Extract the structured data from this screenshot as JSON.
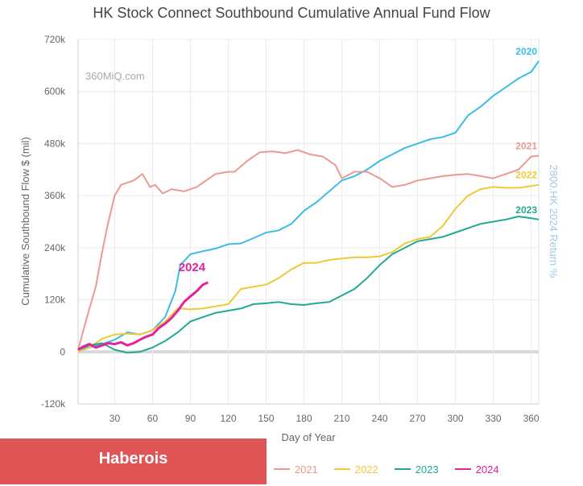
{
  "chart_data": {
    "type": "line",
    "title": "HK Stock Connect Southbound Cumulative Annual Fund Flow",
    "watermark": "360MiQ.com",
    "xlabel": "Day of Year",
    "ylabel": "Cumulative Southbound Flow $ (mil)",
    "y2label": "2800.HK 2024 Return %",
    "xlim": [
      1,
      366
    ],
    "ylim": [
      -120000,
      720000
    ],
    "x_ticks": [
      30,
      60,
      90,
      120,
      150,
      180,
      210,
      240,
      270,
      300,
      330,
      360
    ],
    "y_ticks": [
      {
        "value": 720000,
        "label": "720k"
      },
      {
        "value": 600000,
        "label": "600k"
      },
      {
        "value": 480000,
        "label": "480k"
      },
      {
        "value": 360000,
        "label": "360k"
      },
      {
        "value": 240000,
        "label": "240k"
      },
      {
        "value": 120000,
        "label": "120k"
      },
      {
        "value": 0,
        "label": "0"
      },
      {
        "value": -120000,
        "label": "-120k"
      }
    ],
    "grid": true,
    "legend_position": "bottom",
    "series": [
      {
        "name": "2020",
        "label": "2020",
        "color": "#3bbde6",
        "points": [
          [
            1,
            5000
          ],
          [
            10,
            10000
          ],
          [
            20,
            18000
          ],
          [
            30,
            28000
          ],
          [
            40,
            45000
          ],
          [
            50,
            40000
          ],
          [
            60,
            50000
          ],
          [
            70,
            80000
          ],
          [
            78,
            140000
          ],
          [
            82,
            200000
          ],
          [
            90,
            225000
          ],
          [
            100,
            232000
          ],
          [
            110,
            238000
          ],
          [
            120,
            248000
          ],
          [
            130,
            250000
          ],
          [
            140,
            262000
          ],
          [
            150,
            275000
          ],
          [
            160,
            280000
          ],
          [
            170,
            295000
          ],
          [
            180,
            325000
          ],
          [
            190,
            345000
          ],
          [
            200,
            370000
          ],
          [
            210,
            395000
          ],
          [
            220,
            405000
          ],
          [
            230,
            420000
          ],
          [
            240,
            440000
          ],
          [
            250,
            455000
          ],
          [
            260,
            470000
          ],
          [
            270,
            480000
          ],
          [
            280,
            490000
          ],
          [
            290,
            495000
          ],
          [
            300,
            505000
          ],
          [
            310,
            545000
          ],
          [
            320,
            565000
          ],
          [
            330,
            590000
          ],
          [
            340,
            610000
          ],
          [
            350,
            630000
          ],
          [
            360,
            645000
          ],
          [
            366,
            670000
          ]
        ]
      },
      {
        "name": "2021",
        "label": "2021",
        "color": "#ec9a90",
        "points": [
          [
            1,
            5000
          ],
          [
            8,
            80000
          ],
          [
            15,
            150000
          ],
          [
            20,
            230000
          ],
          [
            25,
            300000
          ],
          [
            30,
            360000
          ],
          [
            35,
            385000
          ],
          [
            45,
            395000
          ],
          [
            52,
            410000
          ],
          [
            58,
            380000
          ],
          [
            62,
            385000
          ],
          [
            68,
            365000
          ],
          [
            75,
            375000
          ],
          [
            85,
            370000
          ],
          [
            95,
            380000
          ],
          [
            100,
            390000
          ],
          [
            110,
            410000
          ],
          [
            120,
            415000
          ],
          [
            125,
            415000
          ],
          [
            135,
            440000
          ],
          [
            145,
            460000
          ],
          [
            155,
            462000
          ],
          [
            165,
            458000
          ],
          [
            175,
            465000
          ],
          [
            185,
            455000
          ],
          [
            195,
            450000
          ],
          [
            205,
            430000
          ],
          [
            210,
            400000
          ],
          [
            220,
            415000
          ],
          [
            230,
            415000
          ],
          [
            240,
            400000
          ],
          [
            250,
            380000
          ],
          [
            260,
            385000
          ],
          [
            270,
            395000
          ],
          [
            280,
            400000
          ],
          [
            290,
            405000
          ],
          [
            300,
            408000
          ],
          [
            310,
            410000
          ],
          [
            320,
            405000
          ],
          [
            330,
            400000
          ],
          [
            340,
            410000
          ],
          [
            350,
            420000
          ],
          [
            360,
            450000
          ],
          [
            366,
            452000
          ]
        ]
      },
      {
        "name": "2022",
        "label": "2022",
        "color": "#f0c936",
        "points": [
          [
            1,
            0
          ],
          [
            10,
            10000
          ],
          [
            20,
            30000
          ],
          [
            30,
            40000
          ],
          [
            40,
            42000
          ],
          [
            50,
            40000
          ],
          [
            60,
            50000
          ],
          [
            70,
            70000
          ],
          [
            80,
            100000
          ],
          [
            90,
            98000
          ],
          [
            100,
            100000
          ],
          [
            110,
            105000
          ],
          [
            120,
            110000
          ],
          [
            130,
            145000
          ],
          [
            140,
            150000
          ],
          [
            150,
            155000
          ],
          [
            160,
            170000
          ],
          [
            170,
            190000
          ],
          [
            180,
            205000
          ],
          [
            190,
            205000
          ],
          [
            200,
            212000
          ],
          [
            210,
            215000
          ],
          [
            220,
            218000
          ],
          [
            230,
            218000
          ],
          [
            240,
            220000
          ],
          [
            250,
            230000
          ],
          [
            260,
            250000
          ],
          [
            270,
            260000
          ],
          [
            280,
            265000
          ],
          [
            290,
            290000
          ],
          [
            300,
            330000
          ],
          [
            310,
            360000
          ],
          [
            320,
            375000
          ],
          [
            330,
            380000
          ],
          [
            340,
            378000
          ],
          [
            350,
            378000
          ],
          [
            360,
            382000
          ],
          [
            366,
            385000
          ]
        ]
      },
      {
        "name": "2023",
        "label": "2023",
        "color": "#22a895",
        "points": [
          [
            1,
            5000
          ],
          [
            10,
            15000
          ],
          [
            20,
            20000
          ],
          [
            30,
            5000
          ],
          [
            40,
            -2000
          ],
          [
            50,
            0
          ],
          [
            55,
            5000
          ],
          [
            60,
            10000
          ],
          [
            70,
            25000
          ],
          [
            80,
            45000
          ],
          [
            90,
            70000
          ],
          [
            100,
            80000
          ],
          [
            110,
            90000
          ],
          [
            120,
            95000
          ],
          [
            130,
            100000
          ],
          [
            140,
            110000
          ],
          [
            150,
            112000
          ],
          [
            160,
            115000
          ],
          [
            170,
            110000
          ],
          [
            180,
            108000
          ],
          [
            190,
            112000
          ],
          [
            200,
            115000
          ],
          [
            210,
            130000
          ],
          [
            220,
            145000
          ],
          [
            230,
            170000
          ],
          [
            240,
            200000
          ],
          [
            250,
            225000
          ],
          [
            260,
            240000
          ],
          [
            270,
            255000
          ],
          [
            280,
            260000
          ],
          [
            290,
            265000
          ],
          [
            300,
            275000
          ],
          [
            310,
            285000
          ],
          [
            320,
            295000
          ],
          [
            330,
            300000
          ],
          [
            340,
            305000
          ],
          [
            350,
            312000
          ],
          [
            360,
            308000
          ],
          [
            366,
            305000
          ]
        ]
      },
      {
        "name": "2024",
        "label": "2024",
        "color": "#e4229e",
        "points": [
          [
            1,
            5000
          ],
          [
            5,
            12000
          ],
          [
            10,
            18000
          ],
          [
            15,
            10000
          ],
          [
            20,
            15000
          ],
          [
            25,
            20000
          ],
          [
            30,
            18000
          ],
          [
            35,
            22000
          ],
          [
            40,
            15000
          ],
          [
            45,
            20000
          ],
          [
            50,
            28000
          ],
          [
            55,
            35000
          ],
          [
            60,
            40000
          ],
          [
            65,
            55000
          ],
          [
            70,
            65000
          ],
          [
            75,
            78000
          ],
          [
            80,
            95000
          ],
          [
            85,
            115000
          ],
          [
            90,
            128000
          ],
          [
            95,
            140000
          ],
          [
            100,
            155000
          ],
          [
            104,
            160000
          ]
        ]
      }
    ]
  },
  "legend": {
    "items": [
      {
        "label": "2800.HK 2024 Return %",
        "color": "#f4c0b8",
        "dashed": true
      },
      {
        "label": "2020",
        "color": "#555555",
        "dashed": false
      },
      {
        "label": "2021",
        "color": "#ec9a90",
        "dashed": false
      },
      {
        "label": "2022",
        "color": "#f0c936",
        "dashed": false
      },
      {
        "label": "2023",
        "color": "#22a895",
        "dashed": false
      },
      {
        "label": "2024",
        "color": "#e4229e",
        "dashed": false
      }
    ]
  },
  "overlay": {
    "text": "Haberois",
    "color": "#e05555"
  }
}
